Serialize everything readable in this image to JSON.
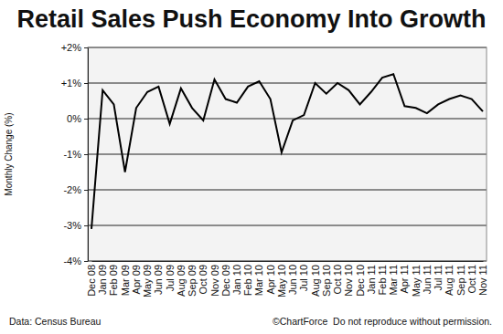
{
  "chart_data": {
    "type": "line",
    "title": "Retail Sales Push Economy Into Growth",
    "ylabel": "Monthly Change (%)",
    "annotations": [
      "Data: Census Bureau",
      "©ChartForce  Do not reproduce without permission."
    ],
    "categories": [
      "Dec 08",
      "Jan 09",
      "Feb 09",
      "Mar 09",
      "Apr 09",
      "May 09",
      "Jun 09",
      "Jul 09",
      "Aug 09",
      "Sep 09",
      "Oct 09",
      "Nov 09",
      "Dec 09",
      "Jan 10",
      "Feb 10",
      "Mar 10",
      "Apr 10",
      "May 10",
      "Jun 10",
      "Jul 10",
      "Aug 10",
      "Sep 10",
      "Oct 10",
      "Nov 10",
      "Dec 10",
      "Jan 11",
      "Feb 11",
      "Mar 11",
      "Apr 11",
      "May 11",
      "Jun 11",
      "Jul 11",
      "Aug 11",
      "Sep 11",
      "Oct 11",
      "Nov 11"
    ],
    "values": [
      -3.1,
      0.8,
      0.4,
      -1.5,
      0.3,
      0.75,
      0.9,
      -0.15,
      0.85,
      0.3,
      -0.05,
      1.1,
      0.55,
      0.45,
      0.9,
      1.05,
      0.55,
      -0.95,
      -0.05,
      0.1,
      1.0,
      0.7,
      1.0,
      0.8,
      0.4,
      0.75,
      1.15,
      1.25,
      0.35,
      0.3,
      0.15,
      0.4,
      0.55,
      0.65,
      0.55,
      0.2
    ],
    "color": "#000000",
    "ylim": [
      -4,
      2
    ],
    "yticks": [
      {
        "value": -4,
        "label": "-4%"
      },
      {
        "value": -3,
        "label": "-3%"
      },
      {
        "value": -2,
        "label": "-2%"
      },
      {
        "value": -1,
        "label": "-1%"
      },
      {
        "value": 0,
        "label": "0%"
      },
      {
        "value": 1,
        "label": "+1%"
      },
      {
        "value": 2,
        "label": "+2%"
      }
    ],
    "grid": true
  }
}
